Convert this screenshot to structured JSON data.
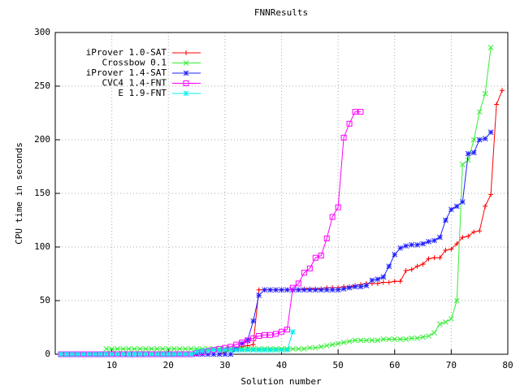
{
  "chart_data": {
    "type": "line",
    "title": "FNNResults",
    "x_label": "Solution number",
    "y_label": "CPU time in seconds",
    "xlim": [
      0,
      80
    ],
    "xticks": [
      10,
      20,
      30,
      40,
      50,
      60,
      70,
      80
    ],
    "ylim": [
      0,
      300
    ],
    "yticks": [
      0,
      50,
      100,
      150,
      200,
      250,
      300
    ],
    "grid": true,
    "legend": "top-left",
    "x": [
      1,
      2,
      3,
      4,
      5,
      6,
      7,
      8,
      9,
      10,
      11,
      12,
      13,
      14,
      15,
      16,
      17,
      18,
      19,
      20,
      21,
      22,
      23,
      24,
      25,
      26,
      27,
      28,
      29,
      30,
      31,
      32,
      33,
      34,
      35,
      36,
      37,
      38,
      39,
      40,
      41,
      42,
      43,
      44,
      45,
      46,
      47,
      48,
      49,
      50,
      51,
      52,
      53,
      54,
      55,
      56,
      57,
      58,
      59,
      60,
      61,
      62,
      63,
      64,
      65,
      66,
      67,
      68,
      69,
      70,
      71,
      72,
      73,
      74,
      75,
      76,
      77,
      78,
      79
    ],
    "series": [
      {
        "name": "iProver 1.0-SAT",
        "color": "#ff0000",
        "marker": "plus",
        "values": [
          0,
          0,
          0,
          0,
          0,
          0,
          0,
          0,
          0,
          0,
          0,
          0,
          0,
          0,
          0,
          0,
          0,
          0,
          0,
          0,
          0,
          0,
          0,
          0,
          0,
          0,
          0,
          0,
          0,
          2,
          4,
          5,
          7,
          8,
          9,
          60,
          60,
          60,
          60,
          60,
          60,
          60,
          60,
          61,
          61,
          61,
          61,
          62,
          62,
          62,
          63,
          63,
          64,
          65,
          66,
          66,
          66,
          67,
          67,
          68,
          68,
          78,
          79,
          82,
          84,
          89,
          90,
          90,
          97,
          98,
          103,
          109,
          110,
          114,
          115,
          138,
          149,
          233,
          246
        ]
      },
      {
        "name": "Crossbow 0.1",
        "color": "#33ee33",
        "marker": "cross",
        "values": [
          null,
          null,
          null,
          null,
          null,
          null,
          null,
          null,
          5,
          5,
          5,
          5,
          5,
          5,
          5,
          5,
          5,
          5,
          5,
          5,
          5,
          5,
          5,
          5,
          5,
          5,
          5,
          5,
          5,
          5,
          5,
          5,
          5,
          5,
          5,
          5,
          5,
          5,
          5,
          5,
          5,
          5,
          5,
          5,
          6,
          6,
          7,
          8,
          9,
          10,
          11,
          12,
          13,
          13,
          13,
          13,
          13,
          14,
          14,
          14,
          14,
          14,
          15,
          15,
          16,
          17,
          20,
          28,
          30,
          33,
          50,
          177,
          181,
          200,
          226,
          243,
          286,
          null,
          null
        ]
      },
      {
        "name": "iProver 1.4-SAT",
        "color": "#2020ff",
        "marker": "star",
        "values": [
          0,
          0,
          0,
          0,
          0,
          0,
          0,
          0,
          0,
          0,
          0,
          0,
          0,
          0,
          0,
          0,
          0,
          0,
          0,
          0,
          0,
          0,
          0,
          0,
          0,
          0,
          0,
          0,
          0,
          0,
          0,
          5,
          10,
          13,
          31,
          55,
          60,
          60,
          60,
          60,
          60,
          60,
          60,
          60,
          60,
          60,
          60,
          60,
          60,
          60,
          61,
          62,
          63,
          63,
          64,
          69,
          70,
          72,
          82,
          93,
          99,
          101,
          102,
          102,
          103,
          105,
          106,
          109,
          125,
          135,
          138,
          142,
          187,
          188,
          200,
          201,
          207,
          null,
          null
        ]
      },
      {
        "name": "CVC4 1.4-FNT",
        "color": "#ff00ff",
        "marker": "square",
        "values": [
          0,
          0,
          0,
          0,
          0,
          0,
          0,
          0,
          0,
          0,
          0,
          0,
          0,
          0,
          0,
          0,
          0,
          0,
          0,
          0,
          0,
          0,
          0,
          0,
          1,
          2,
          3,
          4,
          5,
          6,
          7,
          9,
          11,
          13,
          15,
          17,
          18,
          18,
          19,
          21,
          23,
          62,
          66,
          76,
          80,
          90,
          92,
          108,
          128,
          137,
          202,
          215,
          226,
          226,
          null,
          null,
          null,
          null,
          null,
          null,
          null,
          null,
          null,
          null,
          null,
          null,
          null,
          null,
          null,
          null,
          null,
          null,
          null,
          null,
          null,
          null,
          null,
          null,
          null
        ]
      },
      {
        "name": "E 1.9-FNT",
        "color": "#00eeee",
        "marker": "star",
        "values": [
          0,
          0,
          0,
          0,
          0,
          0,
          0,
          0,
          0,
          0,
          0,
          0,
          0,
          0,
          0,
          0,
          0,
          0,
          0,
          0,
          0,
          0,
          0,
          0,
          2,
          3,
          3,
          4,
          4,
          4,
          4,
          4,
          4,
          4,
          4,
          4,
          4,
          4,
          4,
          4,
          4,
          21,
          null,
          null,
          null,
          null,
          null,
          null,
          null,
          null,
          null,
          null,
          null,
          null,
          null,
          null,
          null,
          null,
          null,
          null,
          null,
          null,
          null,
          null,
          null,
          null,
          null,
          null,
          null,
          null,
          null,
          null,
          null,
          null,
          null,
          null,
          null,
          null,
          null
        ]
      }
    ]
  }
}
